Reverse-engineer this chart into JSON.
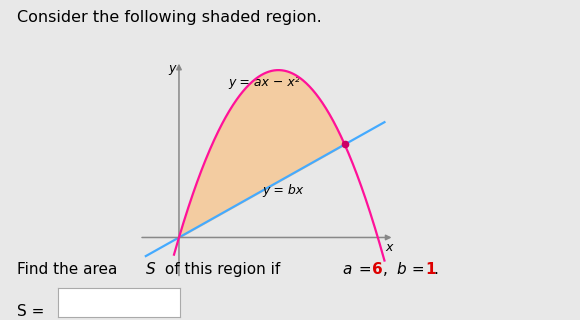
{
  "background_color": "#e8e8e8",
  "plot_bg_color": "#ffffff",
  "title_text": "Consider the following shaded region.",
  "curve_label": "y = ax − x²",
  "line_label": "y = bx",
  "y_axis_label": "y",
  "x_axis_label": "x",
  "a": 6,
  "b": 1,
  "parabola_color": "#ff1199",
  "line_color": "#44aaff",
  "fill_color": "#f5c99a",
  "fill_alpha": 0.9,
  "dot_color": "#cc0066",
  "axis_color": "#888888",
  "title_fontsize": 11.5,
  "label_fontsize": 9,
  "curve_label_fontsize": 9,
  "text_fontsize": 11,
  "xlim": [
    -1.2,
    6.5
  ],
  "ylim": [
    -2.2,
    9.5
  ]
}
